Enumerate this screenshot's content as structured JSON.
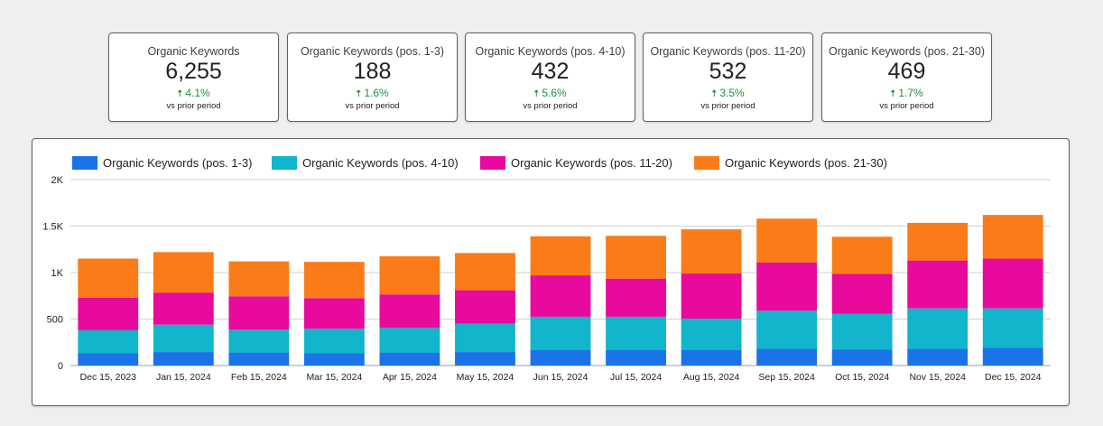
{
  "kpis": [
    {
      "title": "Organic Keywords",
      "value": "6,255",
      "delta": "4.1%",
      "compare": "vs prior period"
    },
    {
      "title": "Organic Keywords (pos. 1-3)",
      "value": "188",
      "delta": "1.6%",
      "compare": "vs prior period"
    },
    {
      "title": "Organic Keywords (pos. 4-10)",
      "value": "432",
      "delta": "5.6%",
      "compare": "vs prior period"
    },
    {
      "title": "Organic Keywords (pos. 11-20)",
      "value": "532",
      "delta": "3.5%",
      "compare": "vs prior period"
    },
    {
      "title": "Organic Keywords (pos. 21-30)",
      "value": "469",
      "delta": "1.7%",
      "compare": "vs prior period"
    }
  ],
  "colors": {
    "pos_1_3": "#1a73e8",
    "pos_4_10": "#12b5cb",
    "pos_11_20": "#e8099d",
    "pos_21_30": "#fa7b17",
    "positive": "#1e8e3e"
  },
  "chart_data": {
    "type": "bar",
    "stacked": true,
    "title": "",
    "xlabel": "",
    "ylabel": "",
    "ylim": [
      0,
      2000
    ],
    "yticks": [
      0,
      500,
      1000,
      1500,
      2000
    ],
    "ytick_labels": [
      "0",
      "500",
      "1K",
      "1.5K",
      "2K"
    ],
    "grid": true,
    "legend_position": "top-left",
    "categories": [
      "Dec 15, 2023",
      "Jan 15, 2024",
      "Feb 15, 2024",
      "Mar 15, 2024",
      "Apr 15, 2024",
      "May 15, 2024",
      "Jun 15, 2024",
      "Jul 15, 2024",
      "Aug 15, 2024",
      "Sep 15, 2024",
      "Oct 15, 2024",
      "Nov 15, 2024",
      "Dec 15, 2024"
    ],
    "series": [
      {
        "name": "Organic Keywords (pos. 1-3)",
        "color": "#1a73e8",
        "values": [
          135,
          145,
          140,
          135,
          140,
          145,
          165,
          165,
          165,
          180,
          170,
          180,
          190
        ]
      },
      {
        "name": "Organic Keywords (pos. 4-10)",
        "color": "#12b5cb",
        "values": [
          245,
          295,
          245,
          260,
          265,
          305,
          360,
          360,
          340,
          410,
          385,
          435,
          425
        ]
      },
      {
        "name": "Organic Keywords (pos. 11-20)",
        "color": "#e8099d",
        "values": [
          350,
          345,
          360,
          330,
          360,
          360,
          445,
          410,
          485,
          520,
          430,
          515,
          535
        ]
      },
      {
        "name": "Organic Keywords (pos. 21-30)",
        "color": "#fa7b17",
        "values": [
          420,
          435,
          375,
          390,
          410,
          400,
          420,
          460,
          475,
          470,
          400,
          405,
          470
        ]
      }
    ]
  }
}
